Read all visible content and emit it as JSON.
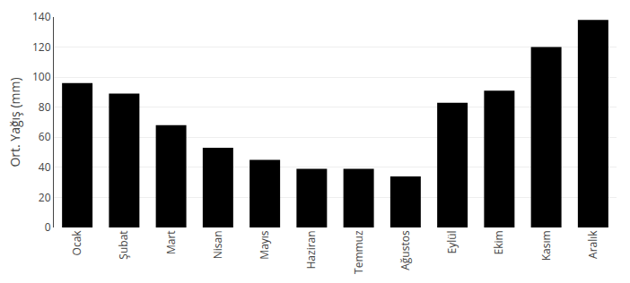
{
  "chart_data": {
    "type": "bar",
    "ylabel": "Ort. Yağış (mm)",
    "categories": [
      "Ocak",
      "Şubat",
      "Mart",
      "Nisan",
      "Mayıs",
      "Haziran",
      "Temmuz",
      "Ağustos",
      "Eylül",
      "Ekim",
      "Kasım",
      "Aralık"
    ],
    "values": [
      96,
      89,
      68,
      53,
      45,
      39,
      39,
      34,
      83,
      91,
      120,
      138
    ],
    "color": "#000000",
    "ylim": [
      0,
      140
    ],
    "yticks": [
      0,
      20,
      40,
      60,
      80,
      100,
      120,
      140
    ],
    "grid": true
  }
}
